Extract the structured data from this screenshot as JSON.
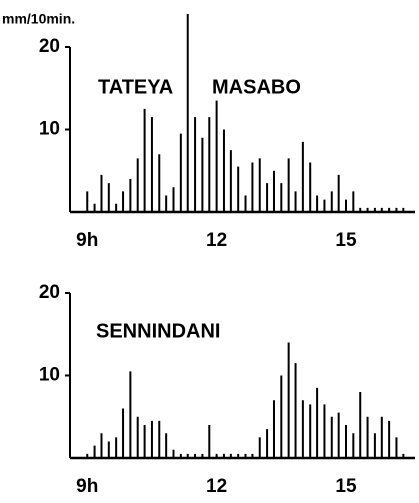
{
  "chart_data": [
    {
      "type": "bar",
      "ylabel": "mm/10min.",
      "annotations": [
        "TATEYA",
        "MASABO"
      ],
      "vline": 11.33,
      "x": [
        9,
        9.17,
        9.33,
        9.5,
        9.67,
        9.83,
        10,
        10.17,
        10.33,
        10.5,
        10.67,
        10.83,
        11,
        11.17,
        11.33,
        11.5,
        11.67,
        11.83,
        12,
        12.17,
        12.33,
        12.5,
        12.67,
        12.83,
        13,
        13.17,
        13.33,
        13.5,
        13.67,
        13.83,
        14,
        14.17,
        14.33,
        14.5,
        14.67,
        14.83,
        15,
        15.17,
        15.33,
        15.5,
        15.67,
        15.83,
        16,
        16.17,
        16.33
      ],
      "values": [
        2.5,
        1,
        4.5,
        3.5,
        1,
        2.5,
        4,
        6.5,
        12.5,
        11.5,
        7,
        2,
        3,
        9.5,
        0,
        11.5,
        9,
        11.5,
        13.5,
        10,
        7.5,
        5.5,
        2,
        6,
        6.5,
        3.5,
        5,
        3.5,
        6.5,
        2.5,
        8.5,
        6,
        2,
        1.5,
        2.5,
        4.5,
        1.5,
        2.5,
        0.5,
        0.5,
        0.5,
        0.5,
        0.5,
        0.5,
        0.5
      ],
      "color": "#000000",
      "xlim": [
        8.6,
        16.6
      ],
      "xticks": [
        {
          "value": 9,
          "label": "9h"
        },
        12,
        15
      ],
      "ylim": [
        0,
        24
      ],
      "yticks": [
        10,
        20
      ]
    },
    {
      "type": "bar",
      "annotations": [
        "SENNINDANI"
      ],
      "x": [
        9,
        9.17,
        9.33,
        9.5,
        9.67,
        9.83,
        10,
        10.17,
        10.33,
        10.5,
        10.67,
        10.83,
        11,
        11.17,
        11.33,
        11.5,
        11.67,
        11.83,
        12,
        12.17,
        12.33,
        12.5,
        12.67,
        12.83,
        13,
        13.17,
        13.33,
        13.5,
        13.67,
        13.83,
        14,
        14.17,
        14.33,
        14.5,
        14.67,
        14.83,
        15,
        15.17,
        15.33,
        15.5,
        15.67,
        15.83,
        16,
        16.17,
        16.33
      ],
      "values": [
        0.5,
        1.5,
        3,
        2,
        2.5,
        6,
        10.5,
        5,
        4,
        4.5,
        4.5,
        3,
        1,
        0.5,
        0.5,
        0.5,
        0.5,
        4,
        0.5,
        0.5,
        0.5,
        0.5,
        0.5,
        0.5,
        2.5,
        3.5,
        7,
        10,
        14,
        11.5,
        7,
        6.5,
        8.5,
        6.5,
        5,
        5.5,
        4,
        3,
        8,
        5,
        3,
        5,
        4.5,
        2.5,
        0.5
      ],
      "color": "#000000",
      "xlim": [
        8.6,
        16.6
      ],
      "xticks": [
        {
          "value": 9,
          "label": "9h"
        },
        12,
        15
      ],
      "ylim": [
        0,
        20
      ],
      "yticks": [
        10,
        20
      ]
    }
  ]
}
